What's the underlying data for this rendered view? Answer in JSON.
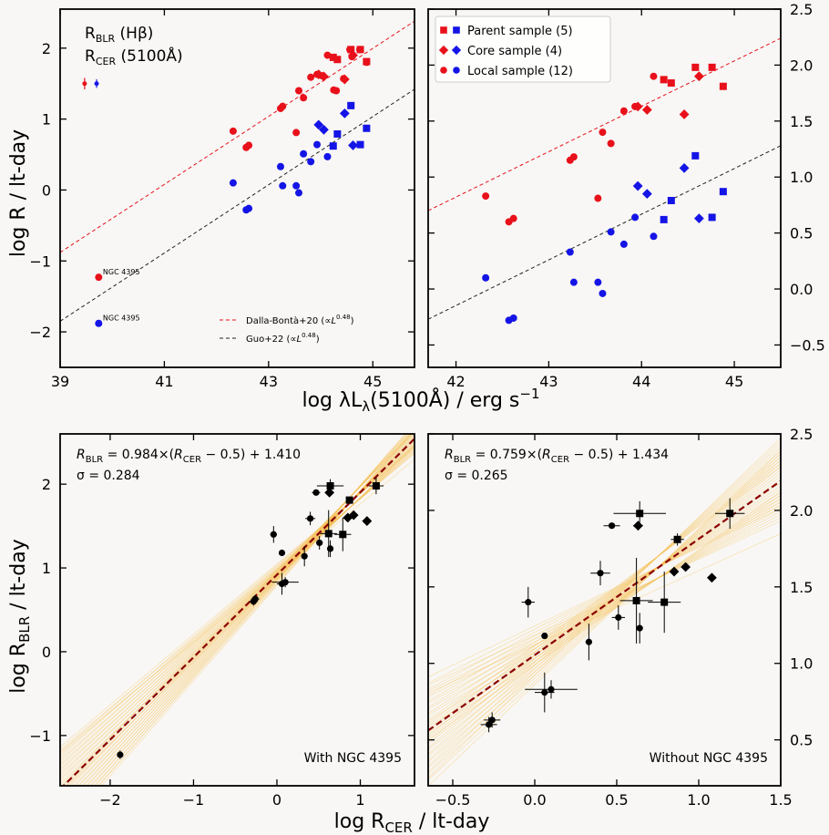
{
  "figure": {
    "top_xlabel": "log λL_λ(5100Å) / erg s⁻¹",
    "top_ylabel": "log R / lt-day",
    "bottom_xlabel": "log R_CER / lt-day",
    "bottom_ylabel": "log R_BLR / lt-day"
  },
  "colors": {
    "blr": "#e8101a",
    "cer": "#1414e6",
    "fit": "#8b0000",
    "mc": "#f5b942",
    "dalla": "#e8101a",
    "guo": "#222222"
  },
  "chart_data": [
    {
      "id": "A",
      "type": "scatter",
      "xlabel": "",
      "ylabel": "log R / lt-day",
      "xlim": [
        39.0,
        45.8
      ],
      "ylim": [
        -2.5,
        2.55
      ],
      "xticks": [
        39,
        41,
        43,
        45
      ],
      "yticks": [
        -2,
        -1,
        0,
        1,
        2
      ],
      "legend": {
        "blr_label": "R_BLR (Hβ)",
        "cer_label": "R_CER (5100Å)",
        "placement": "top-left"
      },
      "lines_legend": {
        "dalla": "Dalla-Bontà+20 (∝L^0.48)",
        "guo": "Guo+22 (∝L^0.48)",
        "placement": "bottom-right"
      },
      "lines": [
        {
          "name": "Dalla-Bontà+20",
          "style": "dalla",
          "x": [
            39.0,
            45.8
          ],
          "y": [
            -0.88,
            2.38
          ]
        },
        {
          "name": "Guo+22",
          "style": "guo",
          "x": [
            39.0,
            45.8
          ],
          "y": [
            -1.85,
            1.42
          ]
        }
      ],
      "annotations": [
        {
          "text": "NGC 4395",
          "x": 39.82,
          "y": -1.19,
          "color": "blr"
        },
        {
          "text": "NGC 4395",
          "x": 39.82,
          "y": -1.84,
          "color": "cer"
        }
      ],
      "errbars": [
        {
          "x": 39.47,
          "y": 1.5,
          "err": 0.08,
          "color": "blr"
        },
        {
          "x": 39.7,
          "y": 1.5,
          "err": 0.06,
          "color": "cer"
        }
      ],
      "series": [
        {
          "color": "blr",
          "marker": "circle",
          "points": [
            [
              39.74,
              -1.23
            ],
            [
              42.32,
              0.83
            ],
            [
              42.57,
              0.6
            ],
            [
              42.62,
              0.63
            ],
            [
              43.23,
              1.15
            ],
            [
              43.27,
              1.18
            ],
            [
              43.53,
              0.81
            ],
            [
              43.58,
              1.4
            ],
            [
              43.67,
              1.3
            ],
            [
              43.81,
              1.59
            ],
            [
              43.93,
              1.63
            ],
            [
              44.03,
              1.61
            ],
            [
              44.13,
              1.9
            ],
            [
              44.25,
              1.41
            ],
            [
              44.3,
              1.4
            ],
            [
              44.44,
              1.57
            ],
            [
              44.56,
              1.98
            ],
            [
              44.6,
              1.88
            ],
            [
              44.75,
              1.98
            ],
            [
              44.88,
              1.8
            ]
          ]
        },
        {
          "color": "cer",
          "marker": "circle",
          "points": [
            [
              39.74,
              -1.88
            ],
            [
              42.32,
              0.1
            ],
            [
              42.57,
              -0.28
            ],
            [
              42.62,
              -0.26
            ],
            [
              43.23,
              0.33
            ],
            [
              43.27,
              0.06
            ],
            [
              43.53,
              0.06
            ],
            [
              43.58,
              -0.04
            ],
            [
              43.67,
              0.51
            ],
            [
              43.81,
              0.4
            ],
            [
              43.93,
              0.64
            ],
            [
              44.13,
              0.47
            ]
          ]
        },
        {
          "color": "blr",
          "marker": "diamond",
          "points": [
            [
              43.96,
              1.63
            ],
            [
              44.06,
              1.6
            ],
            [
              44.46,
              1.56
            ],
            [
              44.62,
              1.9
            ]
          ]
        },
        {
          "color": "cer",
          "marker": "diamond",
          "points": [
            [
              43.96,
              0.92
            ],
            [
              44.06,
              0.85
            ],
            [
              44.46,
              1.08
            ],
            [
              44.62,
              0.63
            ]
          ]
        },
        {
          "color": "blr",
          "marker": "square",
          "points": [
            [
              44.24,
              1.87
            ],
            [
              44.32,
              1.84
            ],
            [
              44.58,
              1.98
            ],
            [
              44.76,
              1.98
            ],
            [
              44.88,
              1.81
            ]
          ]
        },
        {
          "color": "cer",
          "marker": "square",
          "points": [
            [
              44.24,
              0.62
            ],
            [
              44.32,
              0.79
            ],
            [
              44.58,
              1.19
            ],
            [
              44.76,
              0.64
            ],
            [
              44.88,
              0.87
            ]
          ]
        }
      ]
    },
    {
      "id": "B",
      "type": "scatter",
      "xlabel": "",
      "ylabel": "",
      "xlim": [
        41.7,
        45.5
      ],
      "ylim": [
        -0.7,
        2.5
      ],
      "xticks": [
        42,
        43,
        44,
        45
      ],
      "yticks": [
        -0.5,
        0.0,
        0.5,
        1.0,
        1.5,
        2.0,
        2.5
      ],
      "legend": {
        "items": [
          "Parent sample (5)",
          "Core sample (4)",
          "Local sample (12)"
        ],
        "placement": "top-left"
      },
      "lines": [
        {
          "name": "Dalla-Bontà+20",
          "style": "dalla",
          "x": [
            41.7,
            45.5
          ],
          "y": [
            0.7,
            2.24
          ]
        },
        {
          "name": "Guo+22",
          "style": "guo",
          "x": [
            41.7,
            45.5
          ],
          "y": [
            -0.27,
            1.28
          ]
        }
      ],
      "series": [
        {
          "color": "blr",
          "marker": "circle",
          "points": [
            [
              42.32,
              0.83
            ],
            [
              42.57,
              0.6
            ],
            [
              42.62,
              0.63
            ],
            [
              43.23,
              1.15
            ],
            [
              43.27,
              1.18
            ],
            [
              43.53,
              0.81
            ],
            [
              43.58,
              1.4
            ],
            [
              43.67,
              1.3
            ],
            [
              43.81,
              1.59
            ],
            [
              43.93,
              1.63
            ],
            [
              44.13,
              1.9
            ]
          ]
        },
        {
          "color": "cer",
          "marker": "circle",
          "points": [
            [
              42.32,
              0.1
            ],
            [
              42.57,
              -0.28
            ],
            [
              42.62,
              -0.26
            ],
            [
              43.23,
              0.33
            ],
            [
              43.27,
              0.06
            ],
            [
              43.53,
              0.06
            ],
            [
              43.58,
              -0.04
            ],
            [
              43.67,
              0.51
            ],
            [
              43.81,
              0.4
            ],
            [
              43.93,
              0.64
            ],
            [
              44.13,
              0.47
            ]
          ]
        },
        {
          "color": "blr",
          "marker": "diamond",
          "points": [
            [
              43.96,
              1.63
            ],
            [
              44.06,
              1.6
            ],
            [
              44.46,
              1.56
            ],
            [
              44.62,
              1.9
            ]
          ]
        },
        {
          "color": "cer",
          "marker": "diamond",
          "points": [
            [
              43.96,
              0.92
            ],
            [
              44.06,
              0.85
            ],
            [
              44.46,
              1.08
            ],
            [
              44.62,
              0.63
            ]
          ]
        },
        {
          "color": "blr",
          "marker": "square",
          "points": [
            [
              44.24,
              1.87
            ],
            [
              44.32,
              1.84
            ],
            [
              44.58,
              1.98
            ],
            [
              44.76,
              1.98
            ],
            [
              44.88,
              1.81
            ]
          ]
        },
        {
          "color": "cer",
          "marker": "square",
          "points": [
            [
              44.24,
              0.62
            ],
            [
              44.32,
              0.79
            ],
            [
              44.58,
              1.19
            ],
            [
              44.76,
              0.64
            ],
            [
              44.88,
              0.87
            ]
          ]
        }
      ]
    },
    {
      "id": "C",
      "type": "scatter",
      "xlabel": "log R_CER / lt-day",
      "ylabel": "log R_BLR / lt-day",
      "xlim": [
        -2.6,
        1.65
      ],
      "ylim": [
        -1.6,
        2.6
      ],
      "xticks": [
        -2,
        -1,
        0,
        1
      ],
      "yticks": [
        -1,
        0,
        1,
        2
      ],
      "equation": "R_BLR = 0.984×(R_CER − 0.5) + 1.410",
      "sigma": "σ = 0.284",
      "panel_label": "With NGC 4395",
      "fit": {
        "slope": 0.984,
        "pivot": 0.5,
        "intercept": 1.41
      },
      "points": [
        {
          "x": -1.88,
          "y": -1.23,
          "xe": 0.03,
          "ye": 0.05,
          "m": "circle"
        },
        {
          "x": -0.28,
          "y": 0.6,
          "xe": 0.05,
          "ye": 0.05,
          "m": "circle"
        },
        {
          "x": -0.26,
          "y": 0.63,
          "xe": 0.05,
          "ye": 0.05,
          "m": "circle"
        },
        {
          "x": -0.04,
          "y": 1.4,
          "xe": 0.04,
          "ye": 0.1,
          "m": "circle"
        },
        {
          "x": 0.06,
          "y": 0.81,
          "xe": 0.06,
          "ye": 0.13,
          "m": "circle"
        },
        {
          "x": 0.06,
          "y": 1.18,
          "xe": 0.0,
          "ye": 0.0,
          "m": "circle"
        },
        {
          "x": 0.1,
          "y": 0.83,
          "xe": 0.16,
          "ye": 0.06,
          "m": "circle"
        },
        {
          "x": 0.33,
          "y": 1.14,
          "xe": 0.02,
          "ye": 0.12,
          "m": "circle"
        },
        {
          "x": 0.4,
          "y": 1.59,
          "xe": 0.06,
          "ye": 0.08,
          "m": "circle"
        },
        {
          "x": 0.47,
          "y": 1.9,
          "xe": 0.05,
          "ye": 0.0,
          "m": "circle"
        },
        {
          "x": 0.51,
          "y": 1.3,
          "xe": 0.04,
          "ye": 0.08,
          "m": "circle"
        },
        {
          "x": 0.64,
          "y": 1.23,
          "xe": 0.0,
          "ye": 0.1,
          "m": "circle"
        },
        {
          "x": 0.62,
          "y": 1.41,
          "xe": 0.1,
          "ye": 0.28,
          "m": "square"
        },
        {
          "x": 0.64,
          "y": 1.98,
          "xe": 0.16,
          "ye": 0.08,
          "m": "square"
        },
        {
          "x": 0.79,
          "y": 1.4,
          "xe": 0.1,
          "ye": 0.2,
          "m": "square"
        },
        {
          "x": 0.87,
          "y": 1.81,
          "xe": 0.04,
          "ye": 0.04,
          "m": "square"
        },
        {
          "x": 1.19,
          "y": 1.98,
          "xe": 0.09,
          "ye": 0.1,
          "m": "square"
        },
        {
          "x": 0.63,
          "y": 1.9,
          "xe": 0.03,
          "ye": 0.0,
          "m": "diamond"
        },
        {
          "x": 0.85,
          "y": 1.6,
          "xe": 0.0,
          "ye": 0.0,
          "m": "diamond"
        },
        {
          "x": 0.92,
          "y": 1.63,
          "xe": 0.0,
          "ye": 0.0,
          "m": "diamond"
        },
        {
          "x": 1.08,
          "y": 1.56,
          "xe": 0.0,
          "ye": 0.0,
          "m": "diamond"
        }
      ]
    },
    {
      "id": "D",
      "type": "scatter",
      "xlabel": "log R_CER / lt-day",
      "ylabel": "",
      "xlim": [
        -0.65,
        1.5
      ],
      "ylim": [
        0.2,
        2.5
      ],
      "xticks": [
        -0.5,
        0.0,
        0.5,
        1.0,
        1.5
      ],
      "yticks": [
        0.5,
        1.0,
        1.5,
        2.0,
        2.5
      ],
      "equation": "R_BLR = 0.759×(R_CER − 0.5) + 1.434",
      "sigma": "σ = 0.265",
      "panel_label": "Without NGC 4395",
      "fit": {
        "slope": 0.759,
        "pivot": 0.5,
        "intercept": 1.434
      },
      "points": [
        {
          "x": -0.28,
          "y": 0.6,
          "xe": 0.05,
          "ye": 0.05,
          "m": "circle"
        },
        {
          "x": -0.26,
          "y": 0.63,
          "xe": 0.05,
          "ye": 0.05,
          "m": "circle"
        },
        {
          "x": -0.04,
          "y": 1.4,
          "xe": 0.04,
          "ye": 0.1,
          "m": "circle"
        },
        {
          "x": 0.06,
          "y": 0.81,
          "xe": 0.06,
          "ye": 0.13,
          "m": "circle"
        },
        {
          "x": 0.06,
          "y": 1.18,
          "xe": 0.0,
          "ye": 0.0,
          "m": "circle"
        },
        {
          "x": 0.1,
          "y": 0.83,
          "xe": 0.16,
          "ye": 0.06,
          "m": "circle"
        },
        {
          "x": 0.33,
          "y": 1.14,
          "xe": 0.02,
          "ye": 0.12,
          "m": "circle"
        },
        {
          "x": 0.4,
          "y": 1.59,
          "xe": 0.06,
          "ye": 0.08,
          "m": "circle"
        },
        {
          "x": 0.47,
          "y": 1.9,
          "xe": 0.05,
          "ye": 0.0,
          "m": "circle"
        },
        {
          "x": 0.51,
          "y": 1.3,
          "xe": 0.04,
          "ye": 0.08,
          "m": "circle"
        },
        {
          "x": 0.64,
          "y": 1.23,
          "xe": 0.0,
          "ye": 0.1,
          "m": "circle"
        },
        {
          "x": 0.62,
          "y": 1.41,
          "xe": 0.1,
          "ye": 0.28,
          "m": "square"
        },
        {
          "x": 0.64,
          "y": 1.98,
          "xe": 0.16,
          "ye": 0.08,
          "m": "square"
        },
        {
          "x": 0.79,
          "y": 1.4,
          "xe": 0.1,
          "ye": 0.2,
          "m": "square"
        },
        {
          "x": 0.87,
          "y": 1.81,
          "xe": 0.04,
          "ye": 0.04,
          "m": "square"
        },
        {
          "x": 1.19,
          "y": 1.98,
          "xe": 0.09,
          "ye": 0.1,
          "m": "square"
        },
        {
          "x": 0.63,
          "y": 1.9,
          "xe": 0.03,
          "ye": 0.0,
          "m": "diamond"
        },
        {
          "x": 0.85,
          "y": 1.6,
          "xe": 0.0,
          "ye": 0.0,
          "m": "diamond"
        },
        {
          "x": 0.92,
          "y": 1.63,
          "xe": 0.0,
          "ye": 0.0,
          "m": "diamond"
        },
        {
          "x": 1.08,
          "y": 1.56,
          "xe": 0.0,
          "ye": 0.0,
          "m": "diamond"
        }
      ]
    }
  ]
}
